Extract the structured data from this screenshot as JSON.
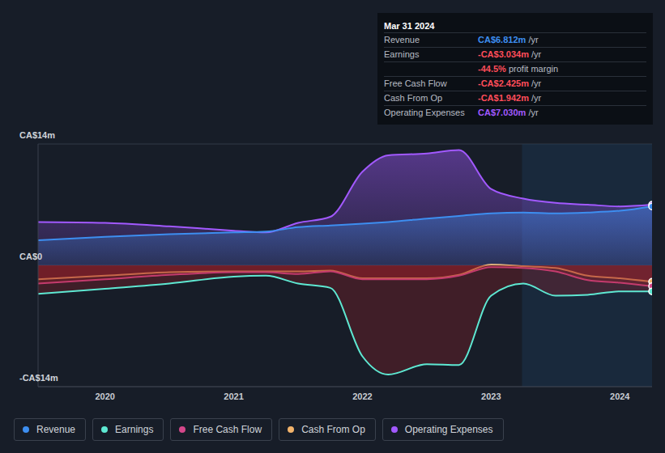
{
  "chart_data": {
    "type": "area",
    "x": [
      2019.48,
      2020,
      2020.5,
      2021,
      2021.25,
      2021.5,
      2021.75,
      2022,
      2022.2,
      2022.5,
      2022.75,
      2023,
      2023.25,
      2023.5,
      2023.75,
      2024,
      2024.25
    ],
    "xlim": [
      2019.48,
      2024.25
    ],
    "xticks": [
      2020,
      2021,
      2022,
      2023,
      2024
    ],
    "ylim": [
      -14,
      14
    ],
    "yticks": [
      {
        "value": 14,
        "label": "CA$14m"
      },
      {
        "value": 0,
        "label": "CA$0"
      },
      {
        "value": -14,
        "label": "-CA$14m"
      }
    ],
    "grid": true,
    "legend": "bottom left",
    "x_band": [
      2023.24,
      2024.25
    ],
    "series": [
      {
        "name": "Revenue",
        "color": "#3d8ef0",
        "values": [
          2.9,
          3.3,
          3.6,
          3.8,
          3.9,
          4.4,
          4.6,
          4.8,
          5.0,
          5.4,
          5.7,
          6.0,
          6.1,
          6.0,
          6.1,
          6.3,
          6.8
        ]
      },
      {
        "name": "Earnings",
        "color": "#5ee8d2",
        "values": [
          -3.3,
          -2.7,
          -2.1,
          -1.3,
          -1.2,
          -2.1,
          -2.6,
          -10.5,
          -12.6,
          -11.4,
          -11.5,
          -3.5,
          -2.1,
          -3.5,
          -3.4,
          -3.0,
          -3.0
        ]
      },
      {
        "name": "Free Cash Flow",
        "color": "#d4478a",
        "values": [
          -2.1,
          -1.6,
          -1.1,
          -0.8,
          -0.8,
          -1.0,
          -0.7,
          -1.6,
          -1.6,
          -1.6,
          -1.2,
          -0.2,
          -0.3,
          -0.7,
          -1.7,
          -2.0,
          -2.4
        ]
      },
      {
        "name": "Cash From Op",
        "color": "#f2b36b",
        "values": [
          -1.6,
          -1.2,
          -0.8,
          -0.7,
          -0.7,
          -0.7,
          -0.6,
          -1.5,
          -1.5,
          -1.5,
          -1.1,
          0.1,
          -0.1,
          -0.3,
          -1.2,
          -1.5,
          -1.9
        ]
      },
      {
        "name": "Operating Expenses",
        "color": "#a259ff",
        "values": [
          5.0,
          4.9,
          4.5,
          4.0,
          3.8,
          4.9,
          5.6,
          10.8,
          12.7,
          12.9,
          13.3,
          8.8,
          7.7,
          7.2,
          7.0,
          6.8,
          7.0
        ]
      }
    ],
    "annotation": {
      "title": "Mar 31 2024",
      "rows": [
        {
          "label": "Revenue",
          "value": "CA$6.812m",
          "suffix": "/yr",
          "color": "#3d8ef0"
        },
        {
          "label": "Earnings",
          "value": "-CA$3.034m",
          "suffix": "/yr",
          "color": "#ff4d5a"
        },
        {
          "value": "-44.5%",
          "suffix": "profit margin",
          "color": "#ff4d5a"
        },
        {
          "label": "Free Cash Flow",
          "value": "-CA$2.425m",
          "suffix": "/yr",
          "color": "#ff4d5a"
        },
        {
          "label": "Cash From Op",
          "value": "-CA$1.942m",
          "suffix": "/yr",
          "color": "#ff4d5a"
        },
        {
          "label": "Operating Expenses",
          "value": "CA$7.030m",
          "suffix": "/yr",
          "color": "#a259ff"
        }
      ]
    }
  }
}
